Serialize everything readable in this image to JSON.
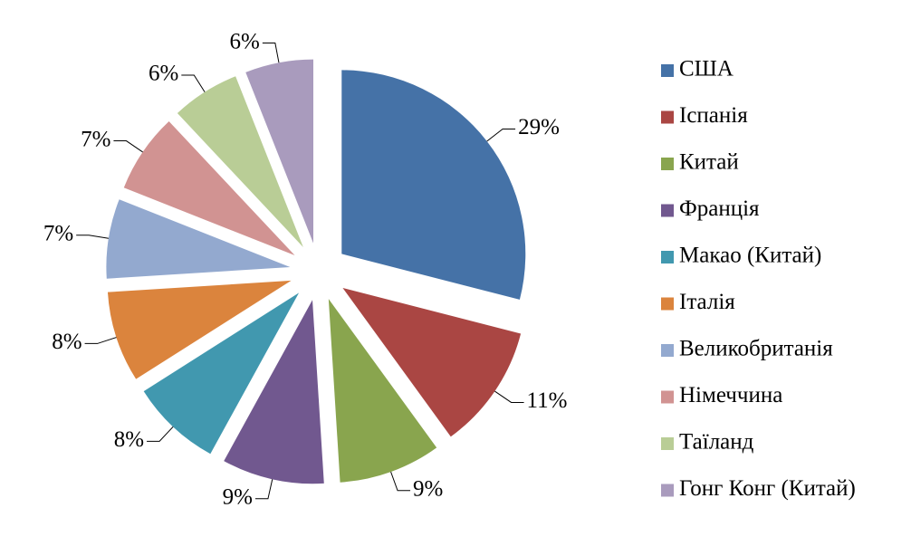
{
  "chart_data": {
    "type": "pie",
    "categories": [
      "США",
      "Іспанія",
      "Китай",
      "Франція",
      "Макао (Китай)",
      "Італія",
      "Великобританія",
      "Німеччина",
      "Таїланд",
      "Гонг Конг (Китай)"
    ],
    "values": [
      29,
      11,
      9,
      9,
      8,
      8,
      7,
      7,
      6,
      6
    ],
    "value_labels": [
      "29%",
      "11%",
      "9%",
      "9%",
      "8%",
      "8%",
      "7%",
      "7%",
      "6%",
      "6%"
    ],
    "colors": [
      "#4572a7",
      "#aa4643",
      "#89a54e",
      "#71588f",
      "#4198af",
      "#db843d",
      "#93a9cf",
      "#d19392",
      "#b9cd96",
      "#a99bbd"
    ],
    "legend": "right"
  }
}
